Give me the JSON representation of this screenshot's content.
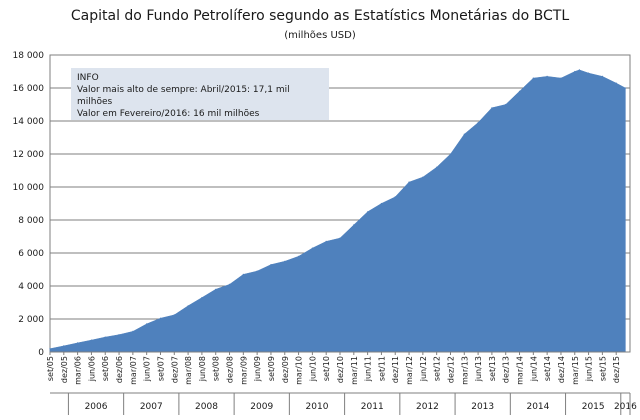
{
  "chart_data": {
    "type": "area",
    "title": "Capital do Fundo Petrolífero segundo as Estatístics Monetárias do BCTL",
    "subtitle": "(milhões USD)",
    "ylim": [
      0,
      18000
    ],
    "y_ticks": [
      "0",
      "2 000",
      "4 000",
      "6 000",
      "8 000",
      "10 000",
      "12 000",
      "14 000",
      "16 000",
      "18 000"
    ],
    "y_tick_values": [
      0,
      2000,
      4000,
      6000,
      8000,
      10000,
      12000,
      14000,
      16000,
      18000
    ],
    "grid": true,
    "color": "#4f81bd",
    "x_tick_labels": [
      "set/05",
      "dez/05",
      "mar/06",
      "jun/06",
      "set/06",
      "dez/06",
      "mar/07",
      "jun/07",
      "set/07",
      "dez/07",
      "mar/08",
      "jun/08",
      "set/08",
      "dez/08",
      "mar/09",
      "jun/09",
      "set/09",
      "dez/09",
      "mar/10",
      "jun/10",
      "set/10",
      "dez/10",
      "mar/11",
      "jun/11",
      "set/11",
      "dez/11",
      "mar/12",
      "jun/12",
      "set/12",
      "dez/12",
      "mar/13",
      "jun/13",
      "set/13",
      "dez/13",
      "mar/14",
      "jun/14",
      "set/14",
      "dez/14",
      "mar/15",
      "jun/15",
      "set/15",
      "dez/15"
    ],
    "years": [
      "2006",
      "2007",
      "2008",
      "2009",
      "2010",
      "2011",
      "2012",
      "2013",
      "2014",
      "2015",
      "2016"
    ],
    "x": [
      "set/05",
      "dez/05",
      "mar/06",
      "jun/06",
      "set/06",
      "dez/06",
      "mar/07",
      "jun/07",
      "set/07",
      "dez/07",
      "mar/08",
      "jun/08",
      "set/08",
      "dez/08",
      "mar/09",
      "jun/09",
      "set/09",
      "dez/09",
      "mar/10",
      "jun/10",
      "set/10",
      "dez/10",
      "mar/11",
      "jun/11",
      "set/11",
      "dez/11",
      "mar/12",
      "jun/12",
      "set/12",
      "dez/12",
      "mar/13",
      "jun/13",
      "set/13",
      "dez/13",
      "mar/14",
      "jun/14",
      "set/14",
      "dez/14",
      "mar/15",
      "abr/15",
      "jun/15",
      "set/15",
      "dez/15",
      "fev/16"
    ],
    "values": [
      200,
      370,
      550,
      720,
      900,
      1050,
      1250,
      1700,
      2050,
      2250,
      2800,
      3300,
      3800,
      4100,
      4700,
      4900,
      5300,
      5500,
      5800,
      6300,
      6700,
      6900,
      7700,
      8500,
      9000,
      9400,
      10300,
      10600,
      11200,
      12000,
      13200,
      13900,
      14800,
      15000,
      15800,
      16600,
      16700,
      16600,
      17000,
      17100,
      16900,
      16700,
      16300,
      16000
    ],
    "info": {
      "heading": "INFO",
      "line1": "Valor mais alto de sempre: Abril/2015:  17,1 mil milhões",
      "line2": "Valor em Fevereiro/2016: 16 mil milhões"
    }
  }
}
